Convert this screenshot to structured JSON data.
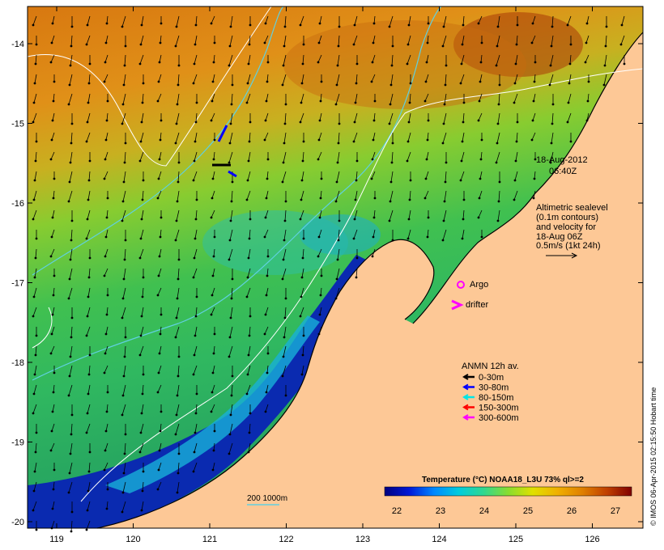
{
  "map": {
    "date": "18-Aug-2012",
    "time": "06:40Z",
    "altimetry": [
      "Altimetric sealevel",
      "(0.1m contours)",
      "and velocity for",
      "18-Aug 06Z",
      "0.5m/s (1kt 24h)"
    ],
    "argo_label": "Argo",
    "drifter_label": "drifter",
    "anmn": {
      "title": "ANMN 12h av.",
      "items": [
        {
          "label": "0-30m",
          "color": "#000000"
        },
        {
          "label": "30-80m",
          "color": "#0000ff"
        },
        {
          "label": "80-150m",
          "color": "#00e5e5"
        },
        {
          "label": "150-300m",
          "color": "#ff0000"
        },
        {
          "label": "300-600m",
          "color": "#ff00ff"
        }
      ]
    },
    "colorbar": {
      "title": "Temperature (°C) NOAA18_L3U 73% ql>=2",
      "ticks": [
        "22",
        "23",
        "24",
        "25",
        "26",
        "27"
      ],
      "colors": [
        "#00007f",
        "#0018d8",
        "#0088ff",
        "#00ccdd",
        "#30d890",
        "#88dd30",
        "#e0e000",
        "#f0b000",
        "#e08000",
        "#c04000",
        "#800000"
      ]
    },
    "isobath_label": "200  1000m",
    "credit": "© IMOS 06-Apr-2015 02:15:50 Hobart time",
    "lon_ticks": [
      "119",
      "120",
      "121",
      "122",
      "123",
      "124",
      "125",
      "126"
    ],
    "lat_ticks": [
      "-14",
      "-15",
      "-16",
      "-17",
      "-18",
      "-19",
      "-20"
    ],
    "colors": {
      "land": "#fdc896",
      "sea_warm": "#e08a10",
      "sea_mid": "#b8d030",
      "sea_cool": "#30b860",
      "sea_cold": "#0a2ab0",
      "isobath_200": "#60d0e0",
      "contour": "#ffffff",
      "argo": "#ff00ff"
    }
  }
}
